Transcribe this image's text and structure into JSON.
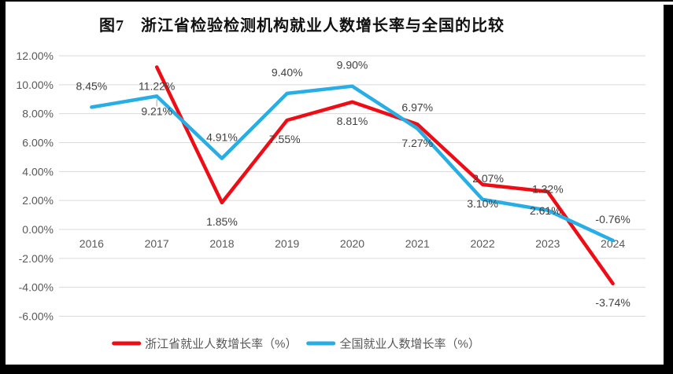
{
  "title": "图7　浙江省检验检测机构就业人数增长率与全国的比较",
  "chart_data": {
    "type": "line",
    "categories": [
      "2016",
      "2017",
      "2018",
      "2019",
      "2020",
      "2021",
      "2022",
      "2023",
      "2024"
    ],
    "series": [
      {
        "name": "浙江省就业人数增长率（%）",
        "color": "#ee0d15",
        "values": [
          null,
          11.22,
          1.85,
          7.55,
          8.81,
          7.27,
          3.1,
          2.61,
          -3.74
        ],
        "labels": [
          "",
          "11.22%",
          "1.85%",
          "7.55%",
          "8.81%",
          "7.27%",
          "3.10%",
          "2.61%",
          "-3.74%"
        ]
      },
      {
        "name": "全国就业人数增长率（%）",
        "color": "#27aee5",
        "values": [
          8.45,
          9.21,
          4.91,
          9.4,
          9.9,
          6.97,
          2.07,
          1.32,
          -0.76
        ],
        "labels": [
          "8.45%",
          "9.21%",
          "4.91%",
          "9.40%",
          "9.90%",
          "6.97%",
          "2.07%",
          "1.32%",
          "-0.76%"
        ]
      }
    ],
    "y_axis": {
      "min": -6,
      "max": 12,
      "step": 2,
      "tick_labels": [
        "12.00%",
        "10.00%",
        "8.00%",
        "6.00%",
        "4.00%",
        "2.00%",
        "0.00%",
        "-2.00%",
        "-4.00%",
        "-6.00%"
      ]
    },
    "grid": true,
    "legend_position": "bottom"
  },
  "colors": {
    "gridline": "#d9d9d9",
    "axis_text": "#595959",
    "data_label_text": "#404040",
    "leader_line": "#a6a6a6",
    "frame": "#000000"
  }
}
